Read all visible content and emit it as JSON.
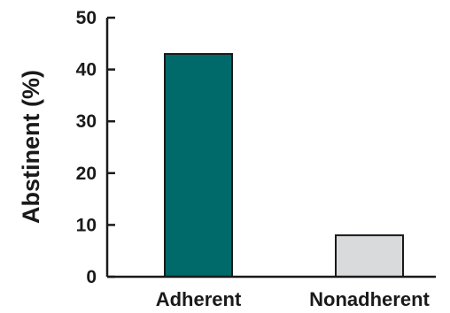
{
  "chart_data": {
    "type": "bar",
    "categories": [
      "Adherent",
      "Nonadherent"
    ],
    "values": [
      43,
      8
    ],
    "title": "",
    "xlabel": "",
    "ylabel": "Abstinent (%)",
    "ylim": [
      0,
      50
    ],
    "yticks": [
      0,
      10,
      20,
      30,
      40,
      50
    ],
    "grid": false,
    "legend": "none",
    "bar_colors": [
      "#00696a",
      "#d8dadc"
    ],
    "axis_color": "#1a1a1a"
  }
}
